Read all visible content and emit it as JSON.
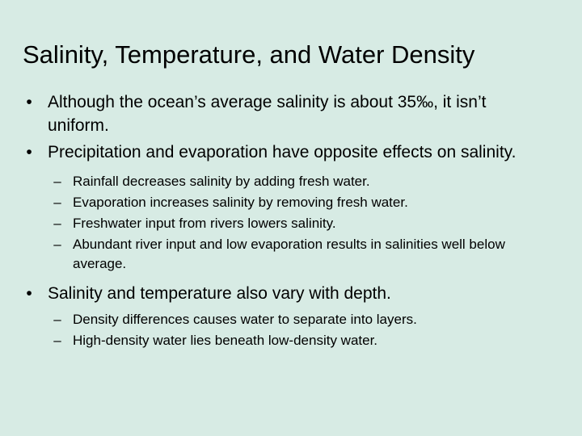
{
  "slide": {
    "title": "Salinity, Temperature, and Water Density",
    "bullet_marker": "•",
    "dash_marker": "–",
    "bullets": [
      {
        "text": "Although the ocean’s average salinity is about 35‰, it isn’t uniform."
      },
      {
        "text": "Precipitation and evaporation have opposite effects on salinity."
      }
    ],
    "sub_bullets_a": [
      {
        "text": "Rainfall decreases salinity by adding fresh water."
      },
      {
        "text": "Evaporation increases salinity by removing fresh water."
      },
      {
        "text": "Freshwater input from rivers lowers salinity."
      },
      {
        "text": "Abundant river input and low evaporation results in salinities well below average."
      }
    ],
    "bullet_3": {
      "text": "Salinity and temperature also vary with depth."
    },
    "sub_bullets_b": [
      {
        "text": "Density differences causes water to separate into layers."
      },
      {
        "text": "High-density water lies beneath low-density water."
      }
    ]
  },
  "colors": {
    "background": "#d7ebe4",
    "text": "#000000"
  }
}
